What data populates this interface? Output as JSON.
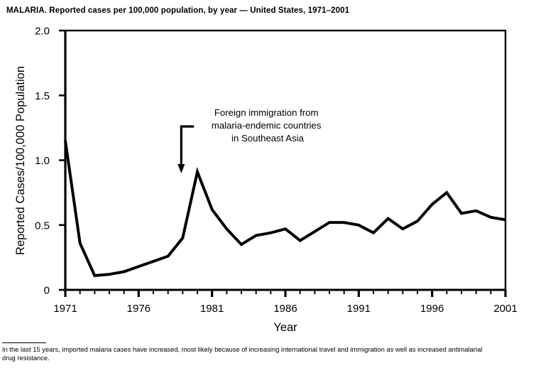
{
  "chart_data": {
    "type": "line",
    "title": "MALARIA. Reported cases per 100,000 population, by year — United States, 1971–2001",
    "xlabel": "Year",
    "ylabel": "Reported Cases/100,000 Population",
    "xlim": [
      1971,
      2001
    ],
    "ylim": [
      0,
      2.0
    ],
    "grid": false,
    "legend": "none",
    "line_color": "#000000",
    "x": [
      1971,
      1972,
      1973,
      1974,
      1975,
      1976,
      1977,
      1978,
      1979,
      1980,
      1981,
      1982,
      1983,
      1984,
      1985,
      1986,
      1987,
      1988,
      1989,
      1990,
      1991,
      1992,
      1993,
      1994,
      1995,
      1996,
      1997,
      1998,
      1999,
      2000,
      2001
    ],
    "values": [
      1.15,
      0.36,
      0.11,
      0.12,
      0.14,
      0.18,
      0.22,
      0.26,
      0.4,
      0.91,
      0.62,
      0.47,
      0.35,
      0.42,
      0.44,
      0.47,
      0.38,
      0.45,
      0.52,
      0.52,
      0.5,
      0.44,
      0.55,
      0.47,
      0.53,
      0.66,
      0.75,
      0.59,
      0.61,
      0.56,
      0.54
    ],
    "x_major_ticks": [
      1971,
      1976,
      1981,
      1986,
      1991,
      1996,
      2001
    ],
    "y_ticks": [
      0,
      0.5,
      1.0,
      1.5,
      2.0
    ],
    "y_tick_labels": [
      "0",
      "0.5",
      "1.0",
      "1.5",
      "2.0"
    ],
    "annotation": {
      "lines": [
        "Foreign immigration from",
        "malaria-endemic countries",
        "in Southeast Asia"
      ],
      "points_to_year": 1979
    }
  },
  "footnote": {
    "line1": "In the last 15 years, imported malaria cases have increased, most likely because of increasing international travel and immigration as well as increased antimalarial",
    "line2": "drug resistance."
  }
}
